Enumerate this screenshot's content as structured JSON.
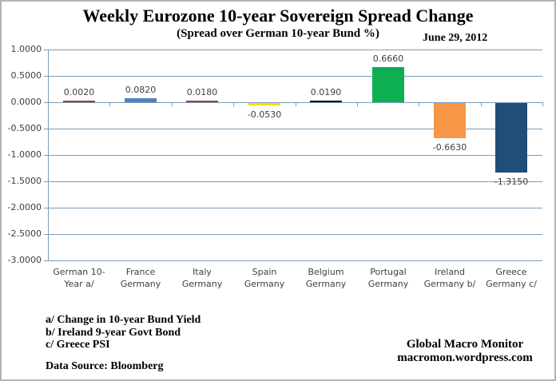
{
  "header": {
    "title": "Weekly Eurozone 10-year Sovereign Spread Change",
    "subtitle": "(Spread over German 10-year Bund  %)",
    "date": "June 29, 2012"
  },
  "chart_data": {
    "type": "bar",
    "title": "Weekly Eurozone 10-year Sovereign Spread Change",
    "subtitle": "(Spread over German 10-year Bund %)",
    "categories": [
      "German 10-Year a/",
      "France Germany",
      "Italy Germany",
      "Spain Germany",
      "Belgium Germany",
      "Portugal Germany",
      "Ireland Germany b/",
      "Greece Germany c/"
    ],
    "category_lines": [
      [
        "German 10-",
        "Year a/"
      ],
      [
        "France",
        "Germany"
      ],
      [
        "Italy",
        "Germany"
      ],
      [
        "Spain",
        "Germany"
      ],
      [
        "Belgium",
        "Germany"
      ],
      [
        "Portugal",
        "Germany"
      ],
      [
        "Ireland",
        "Germany b/"
      ],
      [
        "Greece",
        "Germany c/"
      ]
    ],
    "values": [
      0.002,
      0.082,
      0.018,
      -0.053,
      0.019,
      0.666,
      -0.663,
      -1.315
    ],
    "value_labels": [
      "0.0020",
      "0.0820",
      "0.0180",
      "-0.0530",
      "0.0190",
      "0.6660",
      "-0.6630",
      "-1.3150"
    ],
    "bar_colors": [
      "#A93830",
      "#4F81BD",
      "#A93830",
      "#F2E30C",
      "#000000",
      "#0DAF50",
      "#F79646",
      "#1F4E79"
    ],
    "ylim": [
      -3.0,
      1.0
    ],
    "ytick_step": 0.5,
    "ytick_labels": [
      "1.0000",
      "0.5000",
      "0.0000",
      "-0.5000",
      "-1.0000",
      "-1.5000",
      "-2.0000",
      "-2.5000",
      "-3.0000"
    ],
    "grid": true,
    "legend": false,
    "gridline_color": "#7E9CB9",
    "axis_text_color": "#404040"
  },
  "footnotes": {
    "a": "a/ Change in 10-year Bund  Yield",
    "b": "b/ Ireland 9-year Govt Bond",
    "c": "c/ Greece PSI",
    "source": "Data Source:  Bloomberg"
  },
  "attribution": {
    "name": "Global Macro Monitor",
    "url": "macromon.wordpress.com"
  }
}
